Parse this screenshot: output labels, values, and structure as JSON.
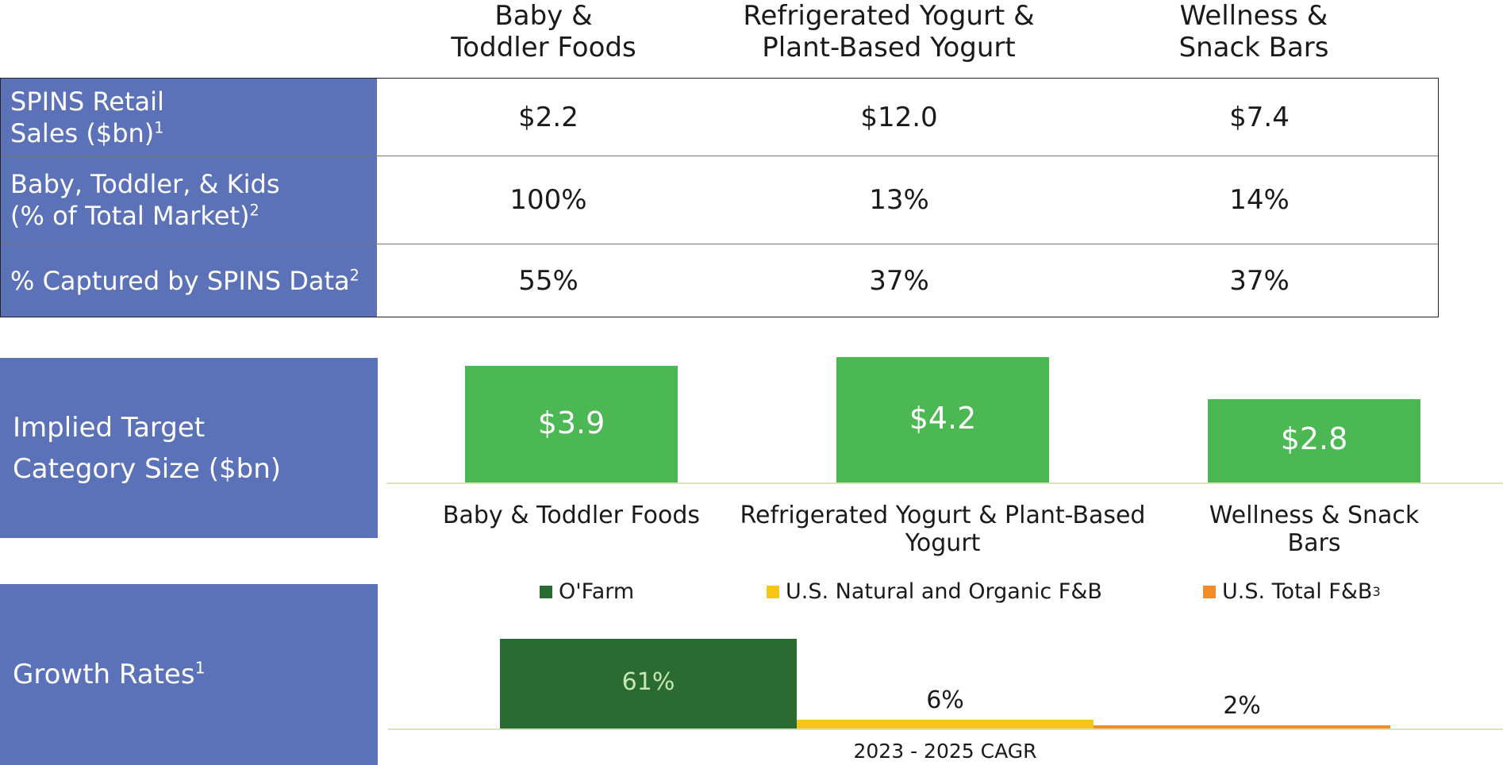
{
  "table": {
    "columns": [
      "Baby &\nToddler Foods",
      "Refrigerated Yogurt &\nPlant-Based Yogurt",
      "Wellness &\nSnack Bars"
    ],
    "rows": [
      {
        "label_line1": "SPINS Retail",
        "label_line2": "Sales ($bn)",
        "sup": "1",
        "values": [
          "$2.2",
          "$12.0",
          "$7.4"
        ]
      },
      {
        "label_line1": "Baby, Toddler, & Kids",
        "label_line2": "(% of Total Market)",
        "sup": "2",
        "values": [
          "100%",
          "13%",
          "14%"
        ]
      },
      {
        "label_line1": "% Captured by SPINS Data",
        "label_line2": "",
        "sup": "2",
        "values": [
          "55%",
          "37%",
          "37%"
        ]
      }
    ]
  },
  "implied": {
    "label_line1": "Implied Target",
    "label_line2": "Category Size ($bn)"
  },
  "growth": {
    "label": "Growth Rates",
    "sup": "1",
    "legend_sup": "3"
  },
  "chart_data": [
    {
      "type": "bar",
      "categories": [
        "Baby & Toddler Foods",
        "Refrigerated Yogurt & Plant-Based Yogurt",
        "Wellness & Snack Bars"
      ],
      "values": [
        3.9,
        4.2,
        2.8
      ],
      "value_labels": [
        "$3.9",
        "$4.2",
        "$2.8"
      ],
      "color": "#4cb853",
      "ylim": [
        0,
        4.2
      ]
    },
    {
      "type": "bar",
      "categories": [
        "2023 - 2025 CAGR"
      ],
      "series": [
        {
          "name": "O'Farm",
          "values": [
            61
          ],
          "label": "61%",
          "color": "#2a6b33"
        },
        {
          "name": "U.S. Natural and Organic F&B",
          "values": [
            6
          ],
          "label": "6%",
          "color": "#f5c518"
        },
        {
          "name": "U.S. Total F&B",
          "values": [
            2
          ],
          "label": "2%",
          "color": "#f28c28"
        }
      ],
      "ylim": [
        0,
        61
      ],
      "legend": "top"
    }
  ]
}
